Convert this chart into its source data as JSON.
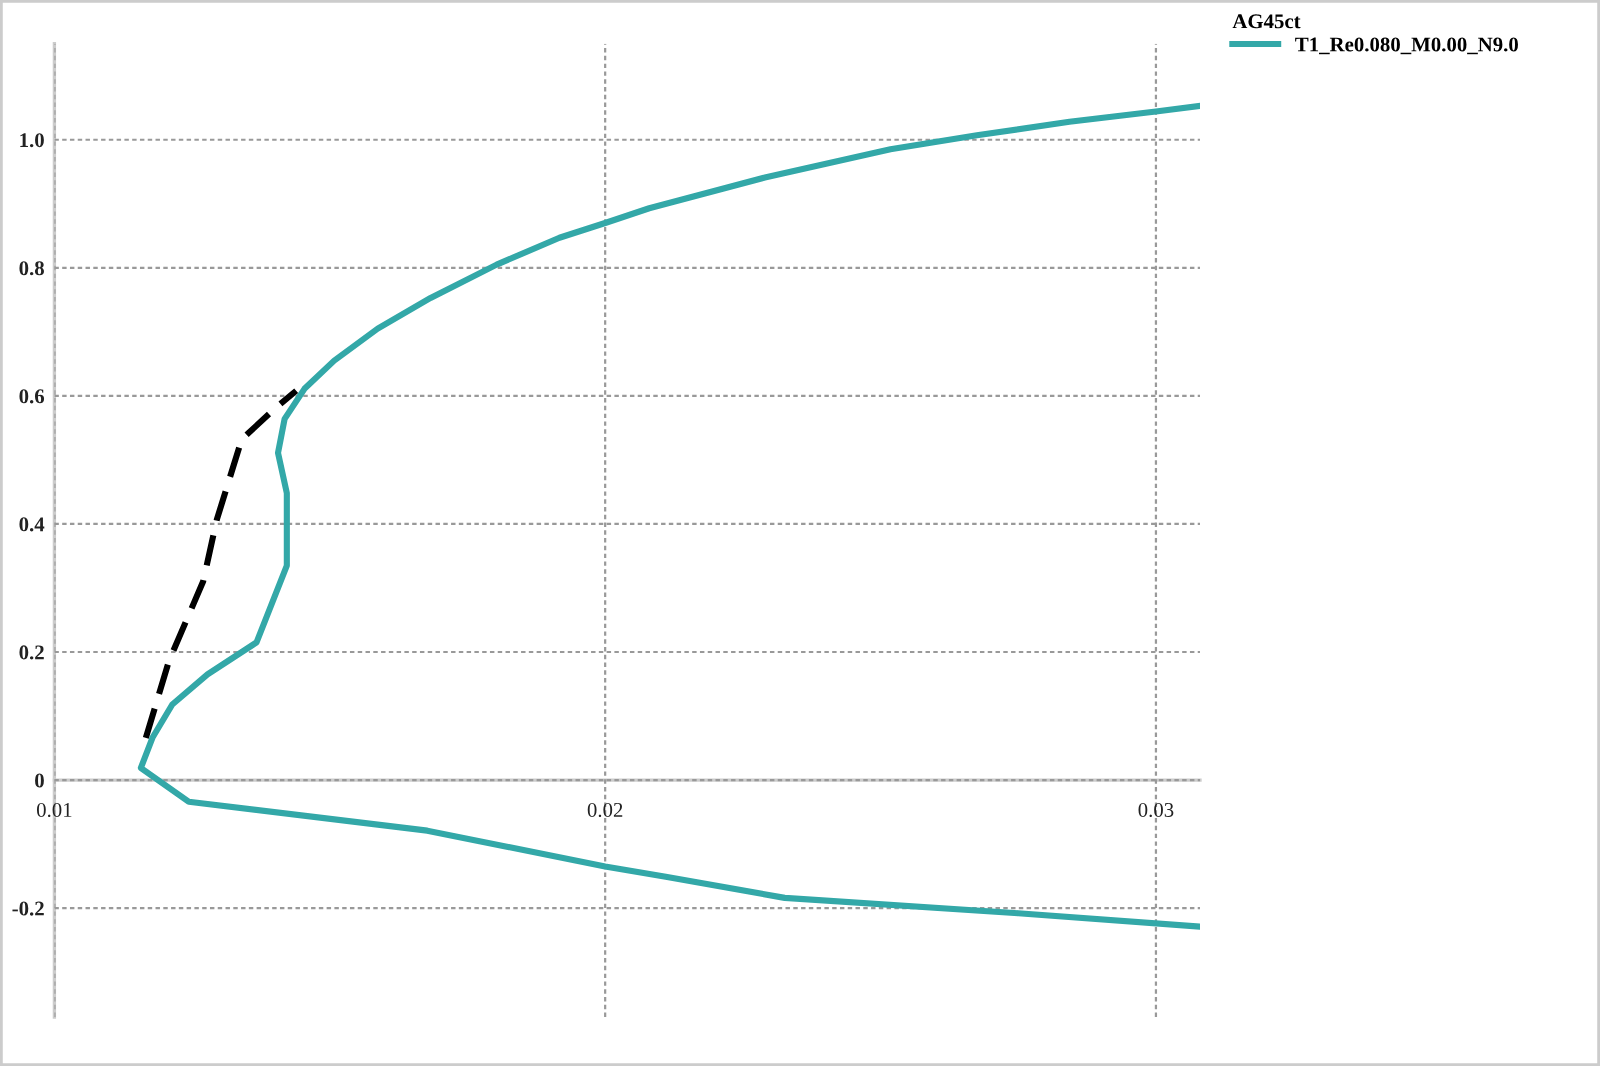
{
  "chart_data": {
    "type": "line",
    "legend_title": "AG45ct",
    "series": [
      {
        "name": "T1_Re0.080_M0.00_N9.0",
        "color": "#33a8a8",
        "line_style": "solid",
        "x": [
          0.0308,
          0.0275,
          0.02326,
          0.0211,
          0.02,
          0.01677,
          0.01244,
          0.01157,
          0.01178,
          0.01214,
          0.01278,
          0.01367,
          0.01422,
          0.01422,
          0.01406,
          0.01418,
          0.01454,
          0.01508,
          0.01587,
          0.01683,
          0.01803,
          0.01917,
          0.02,
          0.0208,
          0.0229,
          0.02518,
          0.02675,
          0.02843,
          0.03,
          0.0308
        ],
        "values": [
          -0.229,
          -0.208,
          -0.184,
          -0.151,
          -0.135,
          -0.079,
          -0.034,
          0.019,
          0.066,
          0.118,
          0.165,
          0.215,
          0.335,
          0.448,
          0.511,
          0.564,
          0.611,
          0.655,
          0.705,
          0.753,
          0.805,
          0.847,
          0.87,
          0.893,
          0.941,
          0.985,
          1.007,
          1.028,
          1.044,
          1.053
        ]
      },
      {
        "color": "#000000",
        "line_style": "dashed",
        "x": [
          0.01166,
          0.01208,
          0.0127,
          0.01295,
          0.0134,
          0.014,
          0.01439
        ],
        "values": [
          0.066,
          0.186,
          0.31,
          0.407,
          0.532,
          0.58,
          0.608
        ]
      }
    ],
    "xlim": [
      0.01,
      0.0308
    ],
    "ylim": [
      -0.37,
      1.15
    ],
    "xticks": [
      0.01,
      0.02,
      0.03
    ],
    "yticks": [
      {
        "value": -0.2,
        "label": "-0.2"
      },
      0,
      0.2,
      0.4,
      0.6,
      0.8,
      {
        "value": 1,
        "label": "1.0"
      }
    ],
    "grid": true,
    "legend": "top right"
  }
}
